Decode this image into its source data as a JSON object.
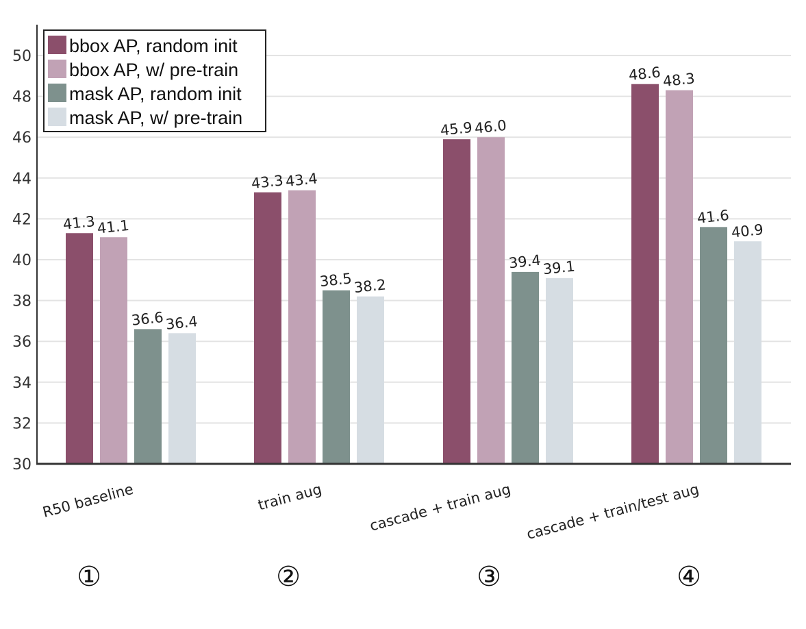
{
  "chart_data": {
    "type": "bar",
    "categories": [
      "R50 baseline",
      "train aug",
      "cascade + train aug",
      "cascade + train/test aug"
    ],
    "series": [
      {
        "name": "bbox AP, random init",
        "values": [
          41.3,
          43.3,
          45.9,
          48.6
        ],
        "labels": [
          "41.3",
          "43.3",
          "45.9",
          "48.6"
        ],
        "color": "#8b4f6b"
      },
      {
        "name": "bbox AP, w/ pre-train",
        "values": [
          41.1,
          43.4,
          46.0,
          48.3
        ],
        "labels": [
          "41.1",
          "43.4",
          "46.0",
          "48.3"
        ],
        "color": "#c1a2b5"
      },
      {
        "name": "mask AP, random init",
        "values": [
          36.6,
          38.5,
          39.4,
          41.6
        ],
        "labels": [
          "36.6",
          "38.5",
          "39.4",
          "41.6"
        ],
        "color": "#7e918d"
      },
      {
        "name": "mask AP, w/ pre-train",
        "values": [
          36.4,
          38.2,
          39.1,
          40.9
        ],
        "labels": [
          "36.4",
          "38.2",
          "39.1",
          "40.9"
        ],
        "color": "#d6dde3"
      }
    ],
    "ylim": [
      30,
      51
    ],
    "yticks": [
      "30",
      "32",
      "34",
      "36",
      "38",
      "40",
      "42",
      "44",
      "46",
      "48",
      "50"
    ],
    "grid": true,
    "legend_position": "top-left",
    "markers": [
      "①",
      "②",
      "③",
      "④"
    ],
    "title": "",
    "xlabel": "",
    "ylabel": ""
  }
}
